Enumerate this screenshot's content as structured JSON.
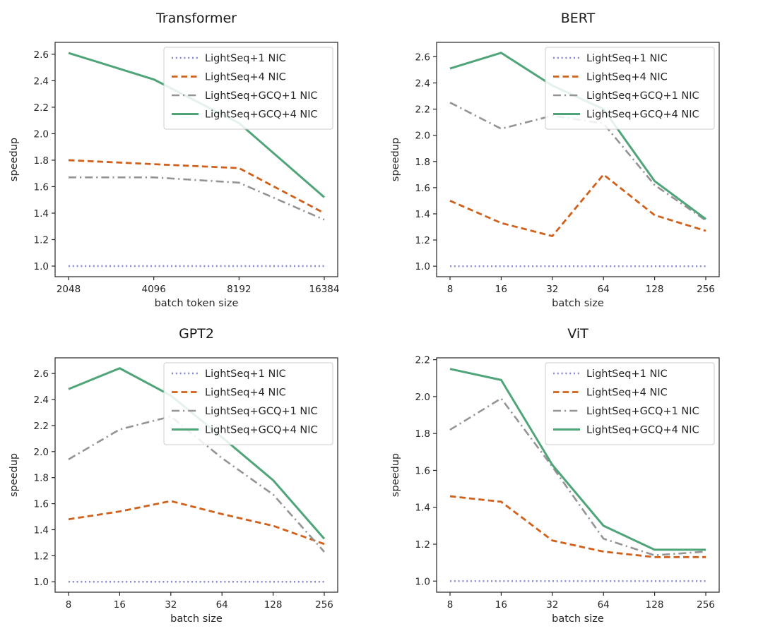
{
  "figure": {
    "background": "#ffffff",
    "series_colors": {
      "lightseq_1nic": "#8387d4",
      "lightseq_4nic": "#d0601a",
      "lightseq_gcq_1nic": "#949494",
      "lightseq_gcq_4nic": "#4fa478"
    }
  },
  "chart_data": [
    {
      "type": "line",
      "title": "Transformer",
      "xlabel": "batch token size",
      "ylabel": "speedup",
      "categories": [
        "2048",
        "4096",
        "8192",
        "16384"
      ],
      "y_ticks": [
        1.0,
        1.2,
        1.4,
        1.6,
        1.8,
        2.0,
        2.2,
        2.4,
        2.6
      ],
      "ylim": [
        0.92,
        2.69
      ],
      "grid": false,
      "legend_position": "upper right",
      "series": [
        {
          "name": "LightSeq+1 NIC",
          "style": "dotted",
          "color": "#8387d4",
          "values": [
            1.0,
            1.0,
            1.0,
            1.0
          ]
        },
        {
          "name": "LightSeq+4 NIC",
          "style": "dashed",
          "color": "#d0601a",
          "values": [
            1.8,
            1.77,
            1.74,
            1.4
          ]
        },
        {
          "name": "LightSeq+GCQ+1 NIC",
          "style": "dashdot",
          "color": "#949494",
          "values": [
            1.67,
            1.67,
            1.63,
            1.35
          ]
        },
        {
          "name": "LightSeq+GCQ+4 NIC",
          "style": "solid",
          "color": "#4fa478",
          "values": [
            2.61,
            2.41,
            2.08,
            1.52
          ]
        }
      ]
    },
    {
      "type": "line",
      "title": "BERT",
      "xlabel": "batch size",
      "ylabel": "speedup",
      "categories": [
        "8",
        "16",
        "32",
        "64",
        "128",
        "256"
      ],
      "y_ticks": [
        1.0,
        1.2,
        1.4,
        1.6,
        1.8,
        2.0,
        2.2,
        2.4,
        2.6
      ],
      "ylim": [
        0.92,
        2.71
      ],
      "grid": false,
      "legend_position": "upper right",
      "series": [
        {
          "name": "LightSeq+1 NIC",
          "style": "dotted",
          "color": "#8387d4",
          "values": [
            1.0,
            1.0,
            1.0,
            1.0,
            1.0,
            1.0
          ]
        },
        {
          "name": "LightSeq+4 NIC",
          "style": "dashed",
          "color": "#d0601a",
          "values": [
            1.5,
            1.33,
            1.23,
            1.7,
            1.39,
            1.27
          ]
        },
        {
          "name": "LightSeq+GCQ+1 NIC",
          "style": "dashdot",
          "color": "#949494",
          "values": [
            2.25,
            2.05,
            2.15,
            2.09,
            1.62,
            1.35
          ]
        },
        {
          "name": "LightSeq+GCQ+4 NIC",
          "style": "solid",
          "color": "#4fa478",
          "values": [
            2.51,
            2.63,
            2.38,
            2.2,
            1.65,
            1.36
          ]
        }
      ]
    },
    {
      "type": "line",
      "title": "GPT2",
      "xlabel": "batch size",
      "ylabel": "speedup",
      "categories": [
        "8",
        "16",
        "32",
        "64",
        "128",
        "256"
      ],
      "y_ticks": [
        1.0,
        1.2,
        1.4,
        1.6,
        1.8,
        2.0,
        2.2,
        2.4,
        2.6
      ],
      "ylim": [
        0.92,
        2.72
      ],
      "grid": false,
      "legend_position": "upper right",
      "series": [
        {
          "name": "LightSeq+1 NIC",
          "style": "dotted",
          "color": "#8387d4",
          "values": [
            1.0,
            1.0,
            1.0,
            1.0,
            1.0,
            1.0
          ]
        },
        {
          "name": "LightSeq+4 NIC",
          "style": "dashed",
          "color": "#d0601a",
          "values": [
            1.48,
            1.54,
            1.62,
            1.52,
            1.43,
            1.29
          ]
        },
        {
          "name": "LightSeq+GCQ+1 NIC",
          "style": "dashdot",
          "color": "#949494",
          "values": [
            1.94,
            2.17,
            2.27,
            1.95,
            1.67,
            1.23
          ]
        },
        {
          "name": "LightSeq+GCQ+4 NIC",
          "style": "solid",
          "color": "#4fa478",
          "values": [
            2.48,
            2.64,
            2.43,
            2.11,
            1.78,
            1.33
          ]
        }
      ]
    },
    {
      "type": "line",
      "title": "ViT",
      "xlabel": "batch size",
      "ylabel": "speedup",
      "categories": [
        "8",
        "16",
        "32",
        "64",
        "128",
        "256"
      ],
      "y_ticks": [
        1.0,
        1.2,
        1.4,
        1.6,
        1.8,
        2.0,
        2.2
      ],
      "ylim": [
        0.94,
        2.21
      ],
      "grid": false,
      "legend_position": "upper right",
      "series": [
        {
          "name": "LightSeq+1 NIC",
          "style": "dotted",
          "color": "#8387d4",
          "values": [
            1.0,
            1.0,
            1.0,
            1.0,
            1.0,
            1.0
          ]
        },
        {
          "name": "LightSeq+4 NIC",
          "style": "dashed",
          "color": "#d0601a",
          "values": [
            1.46,
            1.43,
            1.22,
            1.16,
            1.13,
            1.13
          ]
        },
        {
          "name": "LightSeq+GCQ+1 NIC",
          "style": "dashdot",
          "color": "#949494",
          "values": [
            1.82,
            1.99,
            1.62,
            1.23,
            1.14,
            1.16
          ]
        },
        {
          "name": "LightSeq+GCQ+4 NIC",
          "style": "solid",
          "color": "#4fa478",
          "values": [
            2.15,
            2.09,
            1.63,
            1.3,
            1.17,
            1.17
          ]
        }
      ]
    }
  ]
}
